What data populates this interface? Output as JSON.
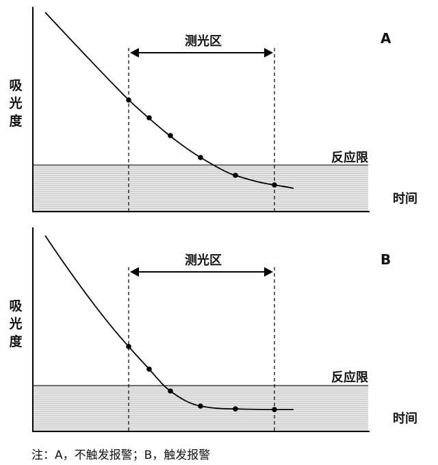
{
  "panels": [
    {
      "id": "A",
      "label": "A",
      "ylabel": "吸光度",
      "measure_label": "测光区",
      "limit_label": "反应限",
      "xlabel": "时间",
      "points_triggered": false
    },
    {
      "id": "B",
      "label": "B",
      "ylabel": "吸光度",
      "measure_label": "测光区",
      "limit_label": "反应限",
      "xlabel": "时间",
      "points_triggered": true
    }
  ],
  "note": "注：A，不触发报警；B，触发报警",
  "colors": {
    "line": "#000000",
    "shade": "#d9d9d9",
    "limit": "#555555"
  }
}
